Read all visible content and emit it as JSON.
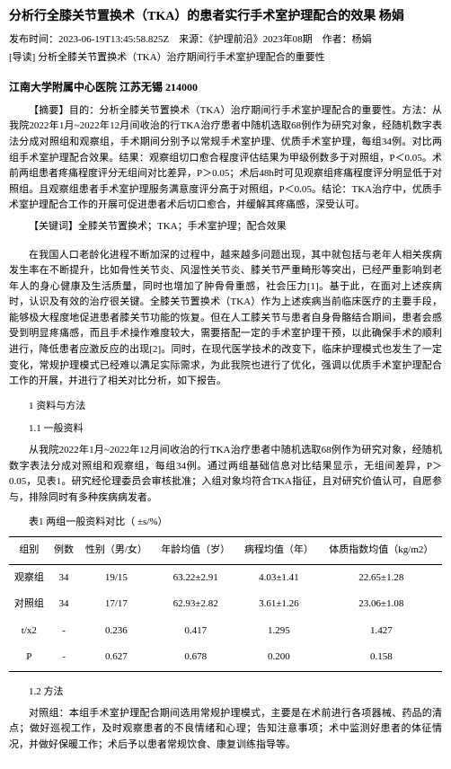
{
  "title": "分析行全膝关节置换术（TKA）的患者实行手术室护理配合的效果 杨娟",
  "meta_line": "发布时间：2023-06-19T13:45:58.825Z　来源：《护理前沿》2023年08期　作者：杨娟",
  "lead_line": "[导读] 分析全膝关节置换术（TKA）治疗期间行手术室护理配合的重要性",
  "affiliation": "江南大学附属中心医院  江苏无锡  214000",
  "abstract_label": "【摘要】",
  "abstract_text": "目的：分析全膝关节置换术（TKA）治疗期间行手术室护理配合的重要性。方法：从我院2022年1月~2022年12月间收治的行TKA治疗患者中随机选取68例作为研究对象，经随机数字表法分成对照组和观察组，手术期间分别予以常规手术室护理、优质手术室护理，每组34例。对比两组手术室护理配合效果。结果：观察组切口愈合程度评估结果为甲级例数多于对照组，P＜0.05。术前两组患者疼痛程度评分无组间对比差异，P＞0.05；术后48h时可见观察组疼痛程度评分明显低于对照组。且观察组患者手术室护理服务满意度评分高于对照组，P＜0.05。结论：TKA治疗中，优质手术室护理配合工作的开展可促进患者术后切口愈合，并缓解其疼痛感，深受认可。",
  "keywords_label": "【关键词】",
  "keywords_text": "全膝关节置换术；TKA；手术室护理；配合效果",
  "body_para": "在我国人口老龄化进程不断加深的过程中，越来越多问题出现，其中就包括与老年人相关疾病发生率在不断提升，比如骨性关节炎、风湿性关节炎、膝关节严重畸形等突出，已经严重影响到老年人的身心健康及生活质量，同时也增加了肿骨骨重感，社会压力[1]。基于此，在面对上述疾病时，认识及有效的治疗很关键。全膝关节置换术（TKA）作为上述疾病当前临床医疗的主要手段，能够极大程度地促进患者膝关节功能的恢复。但在人工膝关节与患者自身骨骼结合期间，患者会感受到明显疼痛感，而且手术操作难度较大，需要搭配一定的手术室护理干预，以此确保手术的顺利进行，降低患者应激反应的出现[2]。同时，在现代医学技术的改变下，临床护理模式也发生了一定变化，常规护理模式已经难以满足实际需求，为此我院也进行了优化，强调以优质手术室护理配合工作的开展，并进行了相关对比分析，如下报告。",
  "sec1": "1 资料与方法",
  "sec11": "1.1 一般资料",
  "methods_para": "从我院2022年1月~2022年12月间收治的行TKA治疗患者中随机选取68例作为研究对象，经随机数字表法分成对照组和观察组，每组34例。通过两组基础信息对比结果显示，无组间差异，P＞0.05，见表1。研究经伦理委员会审核批准；入组对象均符合TKA指征，且对研究价值认可，自愿参与，排除同时有多种疾病病发者。",
  "table1_caption": "表1 两组一般资料对比（  ±s/%）",
  "table1": {
    "columns": [
      "组别",
      "例数",
      "性别（男/女）",
      "年龄均值（岁）",
      "病程均值（年）",
      "体质指数均值（kg/m2）"
    ],
    "rows": [
      [
        "观察组",
        "34",
        "19/15",
        "63.22±2.91",
        "4.03±1.41",
        "22.65±1.28"
      ],
      [
        "对照组",
        "34",
        "17/17",
        "62.93±2.82",
        "3.61±1.26",
        "23.06±1.08"
      ],
      [
        "t/x2",
        "-",
        "0.236",
        "0.417",
        "1.295",
        "1.427"
      ],
      [
        "P",
        "-",
        "0.627",
        "0.678",
        "0.200",
        "0.158"
      ]
    ]
  },
  "sec12": "1.2 方法",
  "method_para": "对照组：本组手术室护理配合期间选用常规护理模式，主要是在术前进行各项器械、药品的清点；做好巡视工作，及时观察患者的不良情绪和心理；告知注意事项；术中监测好患者的体征情况，并做好保暖工作；术后予以患者常规饮食、康复训练指导等。"
}
